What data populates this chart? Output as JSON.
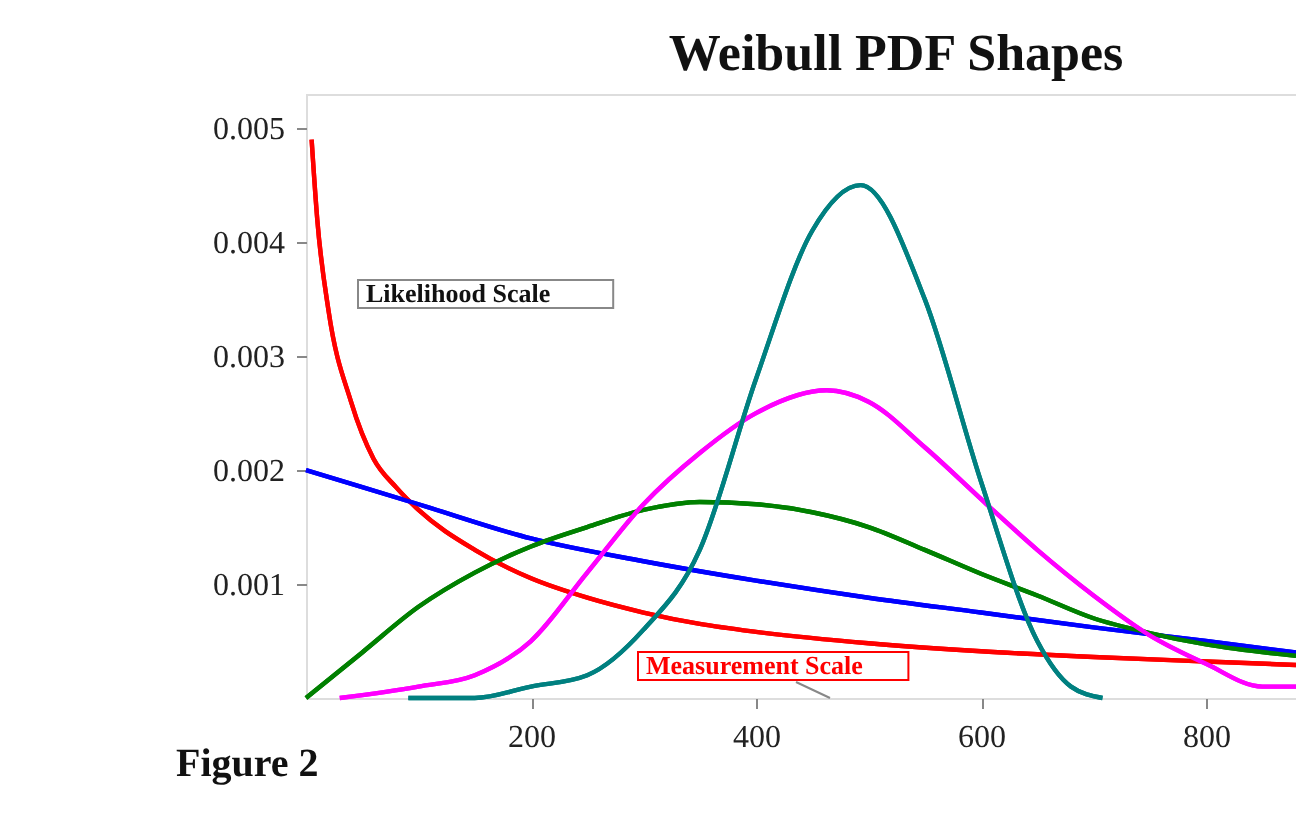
{
  "chart_data": {
    "type": "line",
    "title": "Weibull PDF Shapes",
    "annotations": [
      "Likelihood Scale",
      "Measurement Scale",
      "Figure 2"
    ],
    "xlim": [
      0,
      880
    ],
    "ylim": [
      0,
      0.0053
    ],
    "xticks": [
      200,
      400,
      600,
      800
    ],
    "yticks": [
      0.001,
      0.002,
      0.003,
      0.004,
      0.005
    ],
    "grid": false,
    "legend": false,
    "marker": "none",
    "line_style": "solid",
    "series": [
      {
        "color": "#ff0000",
        "x": [
          5,
          10,
          20,
          40,
          60,
          80,
          100,
          150,
          200,
          250,
          300,
          350,
          400,
          500,
          600,
          700,
          800,
          880
        ],
        "values": [
          0.0049,
          0.0042,
          0.0034,
          0.0026,
          0.0021,
          0.00185,
          0.00165,
          0.0013,
          0.00105,
          0.00088,
          0.00075,
          0.00065,
          0.00058,
          0.00048,
          0.00041,
          0.00036,
          0.00032,
          0.00029
        ]
      },
      {
        "color": "#0000ff",
        "x": [
          0,
          100,
          200,
          300,
          400,
          500,
          600,
          700,
          800,
          880
        ],
        "values": [
          0.002,
          0.0017,
          0.0014,
          0.0012,
          0.00103,
          0.00088,
          0.00075,
          0.00062,
          0.0005,
          0.0004
        ]
      },
      {
        "color": "#008000",
        "x": [
          0,
          50,
          100,
          150,
          200,
          250,
          300,
          350,
          400,
          450,
          500,
          550,
          600,
          650,
          700,
          750,
          800,
          880
        ],
        "values": [
          0,
          0.0004,
          0.0008,
          0.0011,
          0.00133,
          0.0015,
          0.00165,
          0.00172,
          0.0017,
          0.00163,
          0.0015,
          0.0013,
          0.00109,
          0.0009,
          0.0007,
          0.00057,
          0.00047,
          0.00037
        ]
      },
      {
        "color": "#ff00ff",
        "x": [
          30,
          100,
          150,
          200,
          250,
          300,
          350,
          400,
          463,
          500,
          550,
          605,
          650,
          700,
          750,
          800,
          850,
          880
        ],
        "values": [
          0,
          0.0001,
          0.0002,
          0.0005,
          0.0011,
          0.0017,
          0.00215,
          0.0025,
          0.0027,
          0.0026,
          0.0022,
          0.0017,
          0.0013,
          0.0009,
          0.00055,
          0.0003,
          0.0001,
          0.0001
        ]
      },
      {
        "color": "#008080",
        "x": [
          91,
          150,
          200,
          250,
          300,
          350,
          400,
          450,
          493,
          550,
          600,
          650,
          680,
          708
        ],
        "values": [
          0,
          0,
          0.0001,
          0.0002,
          0.0006,
          0.0013,
          0.0028,
          0.0041,
          0.0045,
          0.0035,
          0.0019,
          0.0005,
          0.0001,
          0
        ]
      }
    ]
  }
}
